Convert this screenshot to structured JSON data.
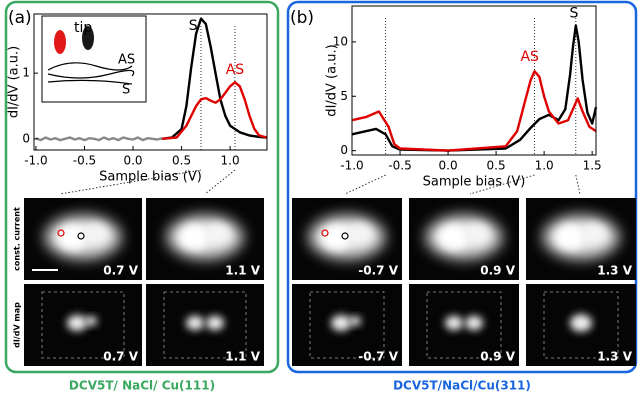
{
  "chart_data": [
    {
      "type": "line",
      "panel_label": "(a)",
      "xlabel": "Sample bias (V)",
      "ylabel": "dI/dV (a.u.)",
      "xlim": [
        -1.02,
        1.38
      ],
      "ylim": [
        -0.17,
        1.9
      ],
      "xticks": [
        {
          "value": -1,
          "label": "-1.0"
        },
        -0.5,
        {
          "value": 0,
          "label": "0.0"
        },
        0.5,
        {
          "value": 1,
          "label": "1.0"
        }
      ],
      "yticks": [
        0,
        1
      ],
      "series": [
        {
          "color": "#888888",
          "x": [
            -1.0,
            -0.95,
            -0.9,
            -0.85,
            -0.8,
            -0.75,
            -0.7,
            -0.65,
            -0.6,
            -0.55,
            -0.5,
            -0.45,
            -0.4,
            -0.35,
            -0.3,
            -0.25,
            -0.2,
            -0.15,
            -0.1,
            -0.05,
            0.0,
            0.05,
            0.1,
            0.15,
            0.2,
            0.25,
            0.3
          ],
          "values": [
            0.01,
            -0.02,
            0.02,
            -0.01,
            0.01,
            -0.02,
            0.0,
            0.02,
            -0.01,
            0.01,
            -0.02,
            0.01,
            0.0,
            -0.02,
            0.02,
            -0.01,
            0.01,
            -0.02,
            0.02,
            0.0,
            -0.01,
            0.02,
            -0.02,
            0.01,
            0.0,
            -0.01,
            0.01
          ]
        },
        {
          "color": "#000000",
          "x": [
            0.3,
            0.4,
            0.5,
            0.55,
            0.6,
            0.65,
            0.7,
            0.75,
            0.8,
            0.85,
            0.9,
            0.95,
            1.0,
            1.1,
            1.2,
            1.3,
            1.38
          ],
          "values": [
            0.0,
            0.02,
            0.15,
            0.5,
            1.1,
            1.6,
            1.83,
            1.75,
            1.4,
            1.0,
            0.6,
            0.35,
            0.2,
            0.1,
            0.05,
            0.03,
            0.02
          ]
        },
        {
          "color": "#e00000",
          "x": [
            0.3,
            0.45,
            0.55,
            0.65,
            0.7,
            0.75,
            0.8,
            0.85,
            0.9,
            0.95,
            1.0,
            1.05,
            1.1,
            1.15,
            1.2,
            1.25,
            1.3,
            1.38
          ],
          "values": [
            0.0,
            0.02,
            0.2,
            0.5,
            0.6,
            0.62,
            0.58,
            0.55,
            0.6,
            0.7,
            0.8,
            0.86,
            0.8,
            0.6,
            0.35,
            0.15,
            0.05,
            0.02
          ]
        }
      ],
      "annotations": [
        {
          "text": "S",
          "x": 0.62,
          "y": 1.72,
          "color": "#000000"
        },
        {
          "text": "AS",
          "x": 1.05,
          "y": 1.05,
          "color": "#e00000"
        }
      ],
      "inset": {
        "tip": "tip",
        "upper": "AS",
        "lower": "S"
      },
      "row_labels": [
        "const. current",
        "dI/dV map"
      ],
      "image_labels": [
        [
          "0.7 V",
          "1.1 V"
        ],
        [
          "0.7 V",
          "1.1 V"
        ]
      ],
      "caption": "DCV5T/ NaCl/ Cu(111)"
    },
    {
      "type": "line",
      "panel_label": "(b)",
      "xlabel": "Sample bias (V)",
      "ylabel": "dI/dV (a.u.)",
      "xlim": [
        -1.0,
        1.54
      ],
      "ylim": [
        -0.4,
        13.3
      ],
      "xticks": [
        {
          "value": -1,
          "label": "-1.0"
        },
        -0.5,
        {
          "value": 0,
          "label": "0.0"
        },
        0.5,
        {
          "value": 1,
          "label": "1.0"
        },
        1.5
      ],
      "yticks": [
        0,
        5,
        10
      ],
      "series": [
        {
          "color": "#000000",
          "x": [
            -1.0,
            -0.85,
            -0.75,
            -0.65,
            -0.58,
            -0.5,
            0.0,
            0.6,
            0.75,
            0.85,
            0.95,
            1.05,
            1.15,
            1.22,
            1.27,
            1.3,
            1.33,
            1.36,
            1.4,
            1.45,
            1.5,
            1.54
          ],
          "values": [
            1.5,
            1.8,
            2.0,
            1.5,
            0.4,
            0.1,
            0.0,
            0.2,
            1.0,
            2.0,
            2.9,
            3.3,
            2.8,
            3.8,
            7.0,
            9.5,
            11.5,
            10.0,
            6.5,
            3.5,
            2.5,
            4.0
          ]
        },
        {
          "color": "#e00000",
          "x": [
            -1.0,
            -0.85,
            -0.72,
            -0.62,
            -0.56,
            -0.5,
            0.0,
            0.6,
            0.72,
            0.8,
            0.86,
            0.9,
            0.95,
            1.0,
            1.05,
            1.15,
            1.25,
            1.3,
            1.35,
            1.4,
            1.47,
            1.54
          ],
          "values": [
            2.8,
            3.1,
            3.6,
            2.2,
            0.6,
            0.2,
            0.0,
            0.4,
            1.8,
            4.5,
            6.5,
            7.3,
            6.8,
            5.0,
            3.6,
            2.5,
            2.8,
            3.8,
            4.8,
            3.6,
            2.2,
            1.8
          ]
        }
      ],
      "annotations": [
        {
          "text": "S",
          "x": 1.31,
          "y": 12.6,
          "color": "#000000"
        },
        {
          "text": "AS",
          "x": 0.85,
          "y": 8.6,
          "color": "#e00000"
        }
      ],
      "image_labels": [
        [
          "-0.7 V",
          "0.9 V",
          "1.3 V"
        ],
        [
          "-0.7 V",
          "0.9 V",
          "1.3 V"
        ]
      ],
      "caption": "DCV5T/NaCl/Cu(311)"
    }
  ]
}
